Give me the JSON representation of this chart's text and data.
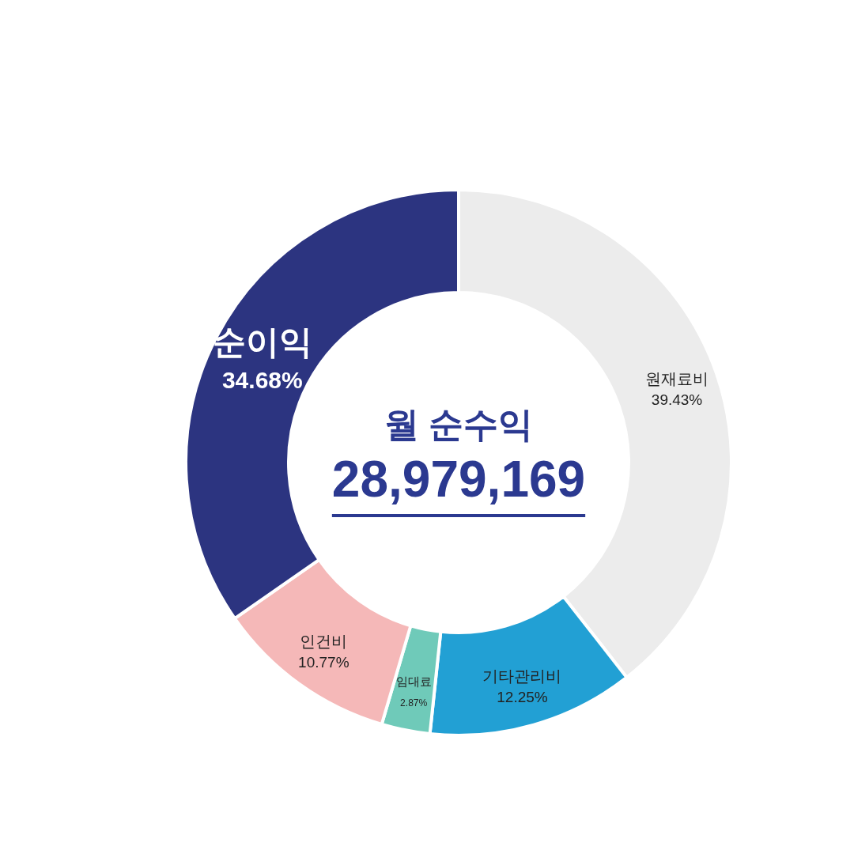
{
  "chart_data": {
    "type": "donut",
    "categories": [
      "원재료비",
      "기타관리비",
      "임대료",
      "인건비",
      "순이익"
    ],
    "values": [
      39.43,
      12.25,
      2.87,
      10.77,
      34.68
    ],
    "value_labels": [
      "39.43%",
      "12.25%",
      "2.87%",
      "10.77%",
      "34.68%"
    ],
    "colors": [
      "#ececec",
      "#22a0d4",
      "#6fcab9",
      "#f5b8b8",
      "#2c3480"
    ],
    "annotations": [
      "월 순수익",
      "28,979,169"
    ]
  }
}
